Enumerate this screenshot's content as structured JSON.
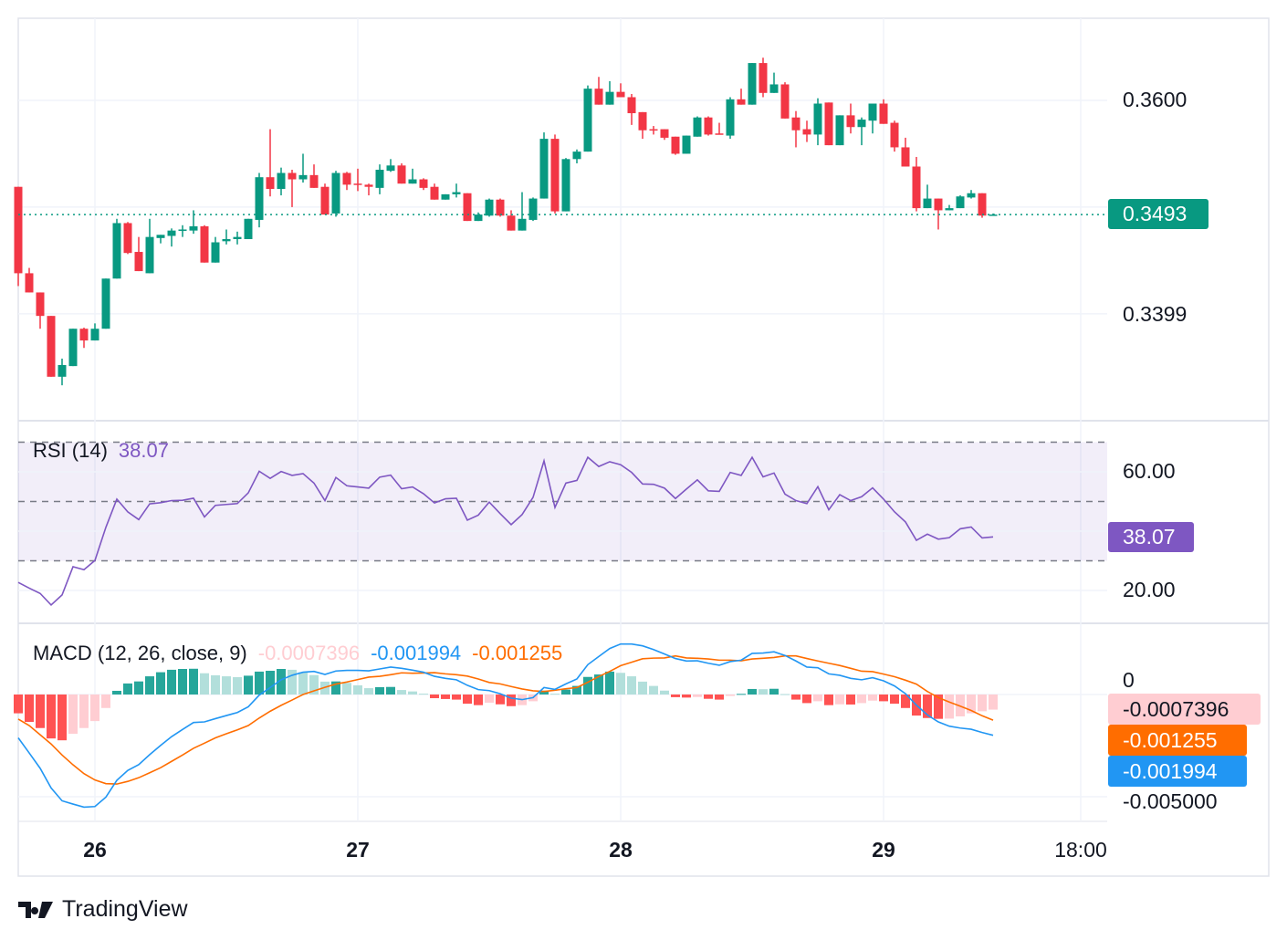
{
  "brand": {
    "name": "TradingView"
  },
  "colors": {
    "up": "#089981",
    "down": "#F23645",
    "rsi": "#7E57C2",
    "macd": "#2196F3",
    "signal": "#FF6D00",
    "hist_up_strong": "#26A69A",
    "hist_up_weak": "#B2DFDB",
    "hist_down_strong": "#FF5252",
    "hist_down_weak": "#FFCDD2",
    "grid": "#F0F3FA"
  },
  "price_axis": {
    "labels": [
      "0.3600",
      "0.3399"
    ],
    "last_price": "0.3493"
  },
  "rsi": {
    "title": "RSI (14)",
    "value": "38.07",
    "axis_labels": [
      "60.00",
      "20.00"
    ]
  },
  "macd": {
    "title": "MACD (12, 26, close, 9)",
    "hist_value": "-0.0007396",
    "macd_value": "-0.001994",
    "signal_value": "-0.001255",
    "axis_labels": [
      "0",
      "-0.005000"
    ]
  },
  "time_axis": {
    "labels": [
      "26",
      "27",
      "28",
      "29",
      "18:00"
    ]
  },
  "chart_data": {
    "type": "candlestick",
    "interval": "1h",
    "first_candle_offset_hours_before_26": 7,
    "ohlc": [
      [
        0.3519,
        0.3519,
        0.3426,
        0.3438
      ],
      [
        0.3438,
        0.3443,
        0.342,
        0.342
      ],
      [
        0.342,
        0.342,
        0.3386,
        0.3398
      ],
      [
        0.3398,
        0.3398,
        0.3341,
        0.3341
      ],
      [
        0.3341,
        0.3358,
        0.3333,
        0.3352
      ],
      [
        0.3351,
        0.3386,
        0.3351,
        0.3386
      ],
      [
        0.3386,
        0.3387,
        0.3368,
        0.3375
      ],
      [
        0.3375,
        0.3391,
        0.3375,
        0.3386
      ],
      [
        0.3386,
        0.3433,
        0.3386,
        0.3433
      ],
      [
        0.3433,
        0.3489,
        0.3433,
        0.3485
      ],
      [
        0.3485,
        0.3486,
        0.3456,
        0.3457
      ],
      [
        0.3458,
        0.3472,
        0.344,
        0.344
      ],
      [
        0.3438,
        0.3489,
        0.3438,
        0.3472
      ],
      [
        0.3471,
        0.3474,
        0.3466,
        0.3474
      ],
      [
        0.3473,
        0.348,
        0.3463,
        0.3478
      ],
      [
        0.3478,
        0.3483,
        0.3472,
        0.3479
      ],
      [
        0.3478,
        0.3497,
        0.3475,
        0.3482
      ],
      [
        0.3482,
        0.3483,
        0.3448,
        0.3448
      ],
      [
        0.3448,
        0.3472,
        0.3448,
        0.3467
      ],
      [
        0.3468,
        0.3479,
        0.3465,
        0.347
      ],
      [
        0.347,
        0.3477,
        0.3465,
        0.3472
      ],
      [
        0.347,
        0.3489,
        0.347,
        0.3489
      ],
      [
        0.3488,
        0.3532,
        0.3481,
        0.3528
      ],
      [
        0.3528,
        0.3573,
        0.351,
        0.3517
      ],
      [
        0.3517,
        0.3537,
        0.3511,
        0.3532
      ],
      [
        0.3532,
        0.3535,
        0.35,
        0.3526
      ],
      [
        0.3526,
        0.355,
        0.3523,
        0.353
      ],
      [
        0.353,
        0.354,
        0.3518,
        0.3518
      ],
      [
        0.3519,
        0.3522,
        0.3493,
        0.3493
      ],
      [
        0.3494,
        0.3534,
        0.3491,
        0.3532
      ],
      [
        0.3532,
        0.3533,
        0.3516,
        0.3521
      ],
      [
        0.3522,
        0.3536,
        0.3515,
        0.3521
      ],
      [
        0.3521,
        0.3522,
        0.3511,
        0.3519
      ],
      [
        0.3518,
        0.354,
        0.3512,
        0.3535
      ],
      [
        0.3534,
        0.3545,
        0.3533,
        0.3539
      ],
      [
        0.3539,
        0.3541,
        0.3522,
        0.3522
      ],
      [
        0.3522,
        0.3536,
        0.3522,
        0.3526
      ],
      [
        0.3526,
        0.3527,
        0.3516,
        0.3518
      ],
      [
        0.3519,
        0.3522,
        0.3507,
        0.3507
      ],
      [
        0.3507,
        0.3512,
        0.3507,
        0.3512
      ],
      [
        0.3512,
        0.3522,
        0.3509,
        0.3514
      ],
      [
        0.3513,
        0.3513,
        0.3487,
        0.3487
      ],
      [
        0.3487,
        0.3495,
        0.3487,
        0.3493
      ],
      [
        0.3492,
        0.3508,
        0.3491,
        0.3507
      ],
      [
        0.3507,
        0.3508,
        0.3491,
        0.3492
      ],
      [
        0.3492,
        0.3497,
        0.3478,
        0.3478
      ],
      [
        0.3478,
        0.3514,
        0.3478,
        0.3489
      ],
      [
        0.3488,
        0.3509,
        0.3487,
        0.3508
      ],
      [
        0.3508,
        0.357,
        0.3508,
        0.3564
      ],
      [
        0.3564,
        0.3568,
        0.3494,
        0.3496
      ],
      [
        0.3496,
        0.3546,
        0.3496,
        0.3545
      ],
      [
        0.3545,
        0.3554,
        0.3541,
        0.3552
      ],
      [
        0.3552,
        0.3614,
        0.3552,
        0.3611
      ],
      [
        0.3611,
        0.3622,
        0.3596,
        0.3596
      ],
      [
        0.3596,
        0.3618,
        0.3596,
        0.3608
      ],
      [
        0.3608,
        0.3616,
        0.3603,
        0.3603
      ],
      [
        0.3603,
        0.3606,
        0.3577,
        0.3588
      ],
      [
        0.3589,
        0.3589,
        0.3564,
        0.3572
      ],
      [
        0.3573,
        0.3576,
        0.3568,
        0.3572
      ],
      [
        0.3573,
        0.3573,
        0.3563,
        0.3565
      ],
      [
        0.3566,
        0.3566,
        0.3549,
        0.355
      ],
      [
        0.355,
        0.3567,
        0.355,
        0.3567
      ],
      [
        0.3566,
        0.3585,
        0.3566,
        0.3584
      ],
      [
        0.3584,
        0.3585,
        0.3567,
        0.3568
      ],
      [
        0.3569,
        0.3579,
        0.3568,
        0.3568
      ],
      [
        0.3567,
        0.3603,
        0.3564,
        0.3601
      ],
      [
        0.3601,
        0.3611,
        0.3596,
        0.3596
      ],
      [
        0.3596,
        0.3635,
        0.3596,
        0.3635
      ],
      [
        0.3635,
        0.364,
        0.3603,
        0.3607
      ],
      [
        0.3607,
        0.3626,
        0.3607,
        0.3615
      ],
      [
        0.3615,
        0.3617,
        0.3583,
        0.3583
      ],
      [
        0.3584,
        0.359,
        0.3556,
        0.3572
      ],
      [
        0.3573,
        0.3581,
        0.3561,
        0.3568
      ],
      [
        0.3568,
        0.3602,
        0.3558,
        0.3597
      ],
      [
        0.3598,
        0.3598,
        0.3558,
        0.3558
      ],
      [
        0.3558,
        0.3586,
        0.3558,
        0.3586
      ],
      [
        0.3586,
        0.3597,
        0.3569,
        0.3575
      ],
      [
        0.3575,
        0.3584,
        0.3558,
        0.3582
      ],
      [
        0.3581,
        0.3597,
        0.3569,
        0.3597
      ],
      [
        0.3597,
        0.3601,
        0.3578,
        0.3578
      ],
      [
        0.3579,
        0.3581,
        0.3552,
        0.3556
      ],
      [
        0.3556,
        0.3565,
        0.3538,
        0.3538
      ],
      [
        0.3538,
        0.3547,
        0.3496,
        0.3499
      ],
      [
        0.3499,
        0.3521,
        0.3499,
        0.3508
      ],
      [
        0.3508,
        0.3508,
        0.3479,
        0.3497
      ],
      [
        0.3497,
        0.3502,
        0.3497,
        0.3499
      ],
      [
        0.3499,
        0.3511,
        0.3499,
        0.351
      ],
      [
        0.3509,
        0.3516,
        0.3508,
        0.3513
      ],
      [
        0.3513,
        0.3513,
        0.349,
        0.3492
      ],
      [
        0.3492,
        0.3494,
        0.3492,
        0.3493
      ]
    ],
    "rsi": [
      22.7,
      20.8,
      19.0,
      15.1,
      18.5,
      28.0,
      27.0,
      30.1,
      41.3,
      50.8,
      46.5,
      43.9,
      49.2,
      49.6,
      50.3,
      50.4,
      51.1,
      44.8,
      48.7,
      49.0,
      49.3,
      52.9,
      60.2,
      57.8,
      60.1,
      58.8,
      59.4,
      56.2,
      50.3,
      58.1,
      55.3,
      54.9,
      54.5,
      58.2,
      58.9,
      54.3,
      54.9,
      52.6,
      49.5,
      50.9,
      51.1,
      43.7,
      45.4,
      49.8,
      45.9,
      42.2,
      45.6,
      51.4,
      63.7,
      48.0,
      56.2,
      57.1,
      64.9,
      61.8,
      63.4,
      62.4,
      59.8,
      55.9,
      55.8,
      54.5,
      51.0,
      54.2,
      57.3,
      53.6,
      53.4,
      59.8,
      58.8,
      64.9,
      58.3,
      59.6,
      52.5,
      50.3,
      49.3,
      55.0,
      47.2,
      52.3,
      50.3,
      51.6,
      54.6,
      50.8,
      46.5,
      43.1,
      36.9,
      39.0,
      37.3,
      37.8,
      40.8,
      41.4,
      37.7,
      38.07
    ],
    "rsi_bands": [
      70,
      50,
      30
    ],
    "macd_line": [
      -0.00212,
      -0.00286,
      -0.00361,
      -0.00457,
      -0.0052,
      -0.00536,
      -0.00551,
      -0.00548,
      -0.00502,
      -0.0042,
      -0.00371,
      -0.00343,
      -0.00294,
      -0.00249,
      -0.00206,
      -0.00171,
      -0.00137,
      -0.00134,
      -0.00118,
      -0.00103,
      -0.00088,
      -0.0006,
      -3e-05,
      0.00034,
      0.00072,
      0.00094,
      0.00109,
      0.00113,
      0.00098,
      0.00115,
      0.00118,
      0.00118,
      0.00116,
      0.00125,
      0.00134,
      0.00128,
      0.00119,
      0.00109,
      0.00089,
      0.00079,
      0.00072,
      0.00045,
      0.00024,
      0.00019,
      4e-05,
      -0.00018,
      -0.00025,
      -0.00015,
      0.00034,
      0.00025,
      0.00052,
      0.00076,
      0.00146,
      0.00186,
      0.00225,
      0.00247,
      0.00247,
      0.00238,
      0.0022,
      0.00198,
      0.00176,
      0.00164,
      0.00165,
      0.00153,
      0.00143,
      0.00161,
      0.00168,
      0.00201,
      0.00203,
      0.00209,
      0.00191,
      0.00164,
      0.00134,
      0.00131,
      0.00101,
      0.00094,
      0.00079,
      0.00072,
      0.00082,
      0.00067,
      0.00042,
      4e-05,
      -0.00052,
      -0.001,
      -0.00134,
      -0.00155,
      -0.00164,
      -0.0017,
      -0.00186,
      -0.001994
    ],
    "macd_histogram": [
      -0.00092,
      -0.00134,
      -0.00164,
      -0.00215,
      -0.00224,
      -0.00192,
      -0.00164,
      -0.0013,
      -0.00066,
      0.00018,
      0.00054,
      0.00064,
      0.00089,
      0.00109,
      0.00121,
      0.00125,
      0.00126,
      0.00104,
      0.00094,
      0.00089,
      0.00085,
      0.00092,
      0.00112,
      0.00116,
      0.00125,
      0.00121,
      0.00109,
      0.00095,
      0.00063,
      0.00064,
      0.00057,
      0.00045,
      0.00031,
      0.00036,
      0.00037,
      0.00022,
      0.00015,
      4e-05,
      -0.00018,
      -0.00022,
      -0.00025,
      -0.00045,
      -0.00052,
      -0.0004,
      -0.00048,
      -0.00057,
      -0.00052,
      -0.00033,
      0.00019,
      4e-05,
      0.00024,
      0.00042,
      0.00086,
      0.00098,
      0.00112,
      0.00106,
      0.00089,
      0.00063,
      0.00042,
      0.00019,
      -0.00013,
      -0.00015,
      -0.00012,
      -0.00021,
      -0.00025,
      -7e-05,
      3e-05,
      0.00027,
      0.00026,
      0.00028,
      2e-05,
      -0.00025,
      -0.00042,
      -0.00033,
      -0.00052,
      -0.00048,
      -0.00049,
      -0.00042,
      -0.0003,
      -0.00033,
      -0.00045,
      -0.00066,
      -0.00103,
      -0.00115,
      -0.00119,
      -0.00118,
      -0.00107,
      -0.00092,
      -0.00082,
      -0.0007396
    ]
  }
}
